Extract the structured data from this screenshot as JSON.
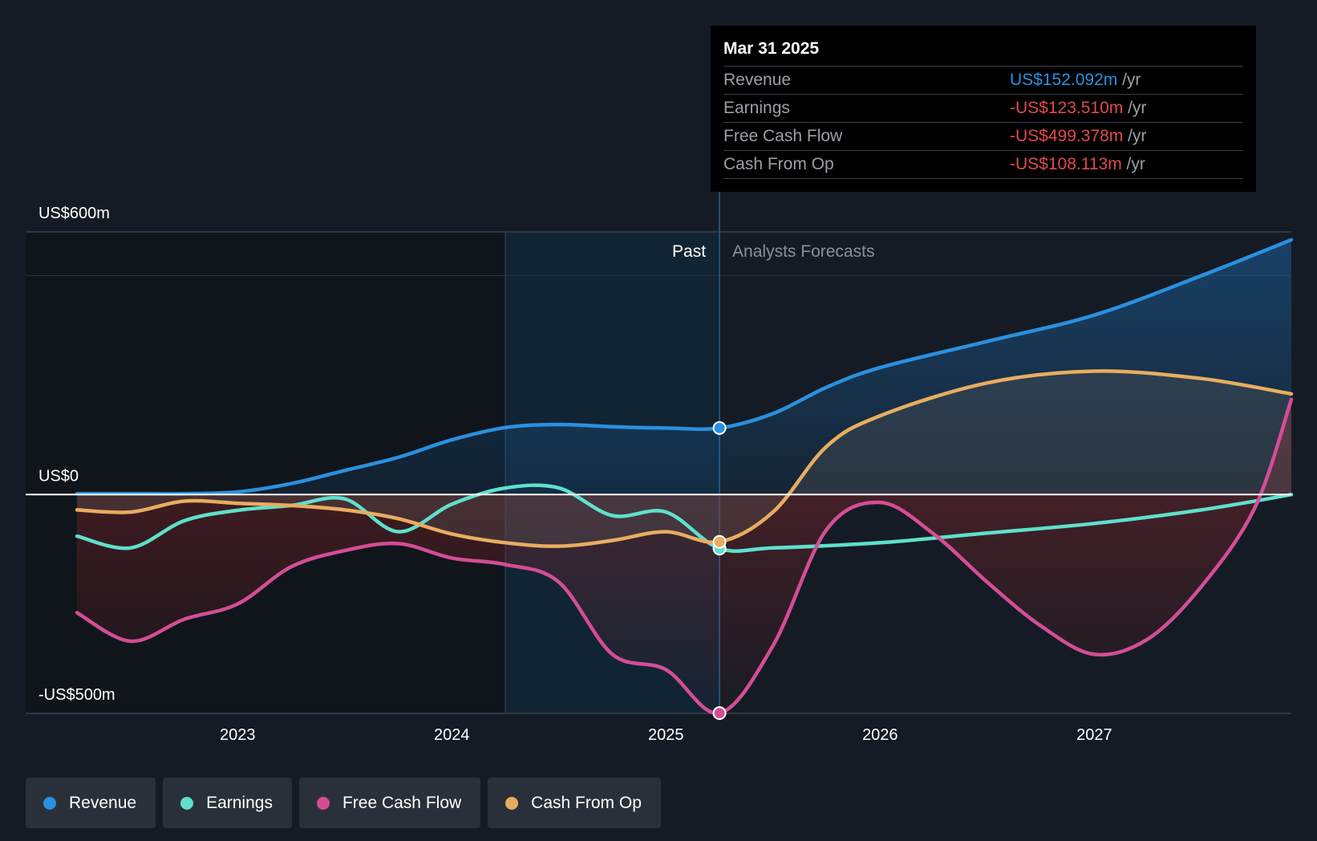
{
  "chart_data": {
    "type": "line",
    "y_labels": {
      "top": "US$600m",
      "zero": "US$0",
      "bottom": "-US$500m"
    },
    "ylim": [
      -500,
      600
    ],
    "xlim": [
      2022.25,
      2027.92
    ],
    "x_ticks": [
      {
        "label": "2023",
        "x": 2023.0
      },
      {
        "label": "2024",
        "x": 2024.0
      },
      {
        "label": "2025",
        "x": 2025.0
      },
      {
        "label": "2026",
        "x": 2026.0
      },
      {
        "label": "2027",
        "x": 2027.0
      }
    ],
    "divider_x": 2025.25,
    "highlight_start_x": 2024.25,
    "past_label": "Past",
    "forecast_label": "Analysts Forecasts",
    "series": [
      {
        "name": "Revenue",
        "color": "#2a90e0",
        "area": true,
        "points": [
          [
            2022.25,
            2
          ],
          [
            2022.5,
            2
          ],
          [
            2022.75,
            2
          ],
          [
            2023.0,
            6
          ],
          [
            2023.25,
            25
          ],
          [
            2023.5,
            55
          ],
          [
            2023.75,
            85
          ],
          [
            2024.0,
            125
          ],
          [
            2024.25,
            153
          ],
          [
            2024.5,
            160
          ],
          [
            2024.75,
            155
          ],
          [
            2025.0,
            152
          ],
          [
            2025.25,
            152
          ],
          [
            2025.5,
            185
          ],
          [
            2025.75,
            245
          ],
          [
            2026.0,
            290
          ],
          [
            2026.5,
            350
          ],
          [
            2027.0,
            410
          ],
          [
            2027.5,
            500
          ],
          [
            2027.92,
            582
          ]
        ]
      },
      {
        "name": "Earnings",
        "color": "#5ee0cc",
        "area": false,
        "points": [
          [
            2022.25,
            -95
          ],
          [
            2022.5,
            -122
          ],
          [
            2022.75,
            -60
          ],
          [
            2023.0,
            -36
          ],
          [
            2023.25,
            -25
          ],
          [
            2023.5,
            -10
          ],
          [
            2023.75,
            -85
          ],
          [
            2024.0,
            -22
          ],
          [
            2024.25,
            15
          ],
          [
            2024.5,
            15
          ],
          [
            2024.75,
            -48
          ],
          [
            2025.0,
            -40
          ],
          [
            2025.25,
            -123
          ],
          [
            2025.5,
            -122
          ],
          [
            2026.0,
            -110
          ],
          [
            2026.5,
            -88
          ],
          [
            2027.0,
            -66
          ],
          [
            2027.5,
            -35
          ],
          [
            2027.92,
            0
          ]
        ]
      },
      {
        "name": "Free Cash Flow",
        "color": "#d44d96",
        "area": true,
        "points": [
          [
            2022.25,
            -270
          ],
          [
            2022.5,
            -335
          ],
          [
            2022.75,
            -285
          ],
          [
            2023.0,
            -250
          ],
          [
            2023.25,
            -165
          ],
          [
            2023.5,
            -128
          ],
          [
            2023.75,
            -112
          ],
          [
            2024.0,
            -145
          ],
          [
            2024.25,
            -160
          ],
          [
            2024.5,
            -200
          ],
          [
            2024.75,
            -365
          ],
          [
            2025.0,
            -400
          ],
          [
            2025.25,
            -499
          ],
          [
            2025.5,
            -345
          ],
          [
            2025.75,
            -80
          ],
          [
            2026.0,
            -18
          ],
          [
            2026.25,
            -90
          ],
          [
            2026.5,
            -200
          ],
          [
            2026.75,
            -300
          ],
          [
            2027.0,
            -365
          ],
          [
            2027.25,
            -330
          ],
          [
            2027.5,
            -210
          ],
          [
            2027.75,
            -30
          ],
          [
            2027.92,
            217
          ]
        ]
      },
      {
        "name": "Cash From Op",
        "color": "#e8ad60",
        "area": true,
        "points": [
          [
            2022.25,
            -35
          ],
          [
            2022.5,
            -40
          ],
          [
            2022.75,
            -15
          ],
          [
            2023.0,
            -20
          ],
          [
            2023.25,
            -25
          ],
          [
            2023.5,
            -35
          ],
          [
            2023.75,
            -55
          ],
          [
            2024.0,
            -90
          ],
          [
            2024.25,
            -110
          ],
          [
            2024.5,
            -118
          ],
          [
            2024.75,
            -105
          ],
          [
            2025.0,
            -85
          ],
          [
            2025.25,
            -108
          ],
          [
            2025.5,
            -40
          ],
          [
            2025.75,
            110
          ],
          [
            2026.0,
            180
          ],
          [
            2026.5,
            255
          ],
          [
            2027.0,
            282
          ],
          [
            2027.5,
            265
          ],
          [
            2027.92,
            230
          ]
        ]
      }
    ],
    "marker_x": 2025.25,
    "markers": [
      {
        "series": "Revenue",
        "y": 152.092
      },
      {
        "series": "Earnings",
        "y": -123.51
      },
      {
        "series": "Free Cash Flow",
        "y": -499.378
      },
      {
        "series": "Cash From Op",
        "y": -108.113
      }
    ]
  },
  "tooltip": {
    "date": "Mar 31 2025",
    "unit": " /yr",
    "rows": [
      {
        "label": "Revenue",
        "value": "US$152.092m",
        "color": "#2a90e0"
      },
      {
        "label": "Earnings",
        "value": "-US$123.510m",
        "color": "#e04a4a"
      },
      {
        "label": "Free Cash Flow",
        "value": "-US$499.378m",
        "color": "#e04a4a"
      },
      {
        "label": "Cash From Op",
        "value": "-US$108.113m",
        "color": "#e04a4a"
      }
    ]
  },
  "legend": [
    {
      "label": "Revenue",
      "color": "#2a90e0"
    },
    {
      "label": "Earnings",
      "color": "#5ee0cc"
    },
    {
      "label": "Free Cash Flow",
      "color": "#d44d96"
    },
    {
      "label": "Cash From Op",
      "color": "#e8ad60"
    }
  ]
}
